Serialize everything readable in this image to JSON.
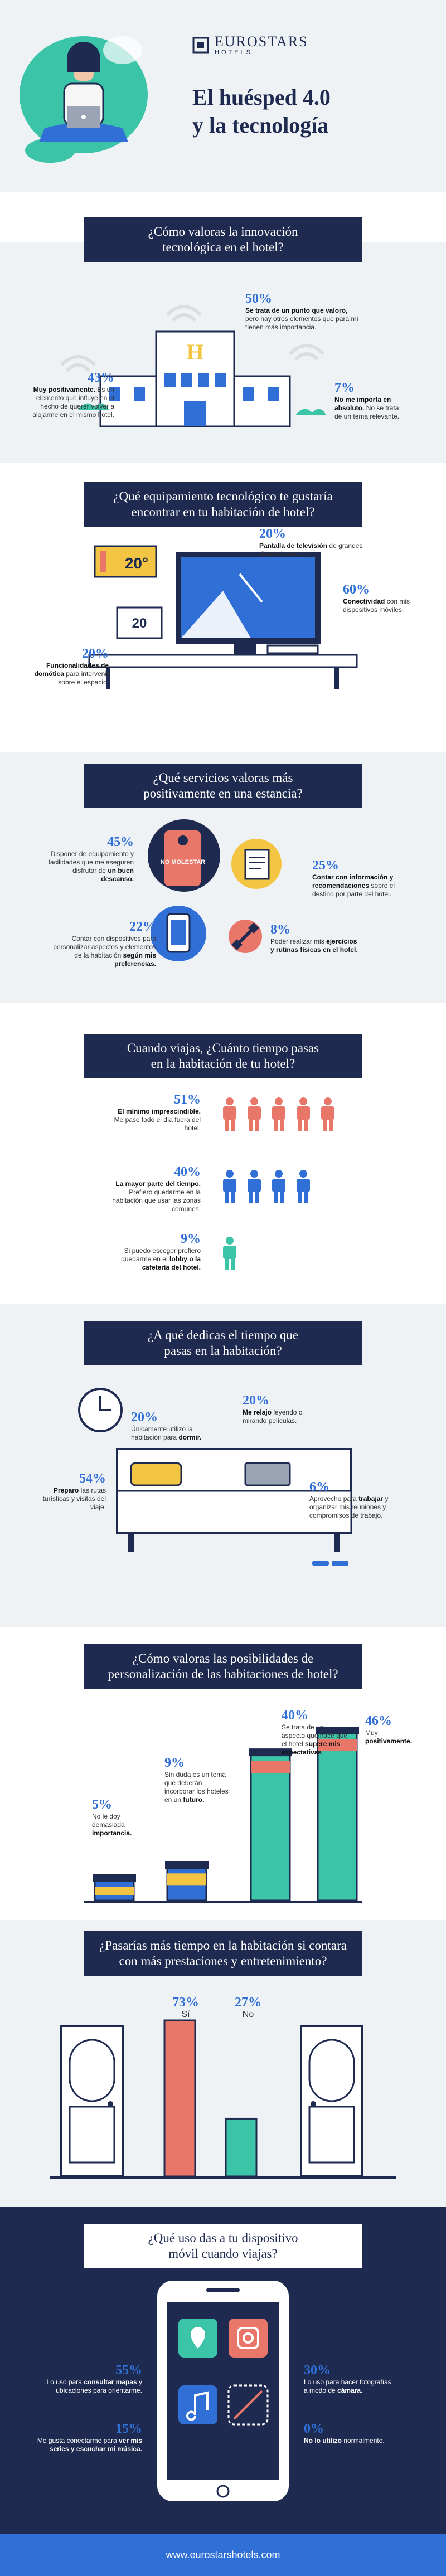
{
  "header": {
    "brand": "EUROSTARS",
    "brand_sub": "HOTELS",
    "title_line1": "El huésped 4.0",
    "title_line2": "y la tecnología"
  },
  "s1": {
    "q1": "¿Cómo valoras la innovación",
    "q2": "tecnológica en el hotel?",
    "hotel_letter": "H",
    "items": [
      {
        "pct": "50%",
        "strong": "Se trata de un punto que valoro,",
        "text": "pero hay otros elementos que para mí tienen más importancia."
      },
      {
        "pct": "43%",
        "strong": "Muy positivamente.",
        "text": "Es un elemento que influye en el hecho de querer volver a alojarme en el mismo hotel."
      },
      {
        "pct": "7%",
        "strong": "No me importa en absoluto.",
        "text": "No se trata de un tema relevante."
      }
    ]
  },
  "s2": {
    "q1": "¿Qué equipamiento tecnológico te gustaría",
    "q2": "encontrar en tu habitación de hotel?",
    "thermo1": "20°",
    "thermo2": "20",
    "items": [
      {
        "pct": "20%",
        "strong": "Pantalla de televisión",
        "text": "de grandes dimensiones."
      },
      {
        "pct": "60%",
        "strong": "Conectividad",
        "text": "con mis dispositivos móviles."
      },
      {
        "pct": "20%",
        "strong": "Funcionalidades de domótica",
        "text": "para intervenir sobre el espacio."
      }
    ]
  },
  "s3": {
    "q1": "¿Qué servicios valoras más",
    "q2": "positivamente en una estancia?",
    "sign": "NO MOLESTAR",
    "items": [
      {
        "pct": "45%",
        "text": "Disponer de equipamiento y facilidades que me aseguren disfrutar de",
        "strong": "un buen descanso."
      },
      {
        "pct": "25%",
        "strong": "Contar con información y recomendaciones",
        "text": "sobre el destino por parte del hotel."
      },
      {
        "pct": "22%",
        "text": "Contar con dispositivos para personalizar aspectos y elementos de la habitación",
        "strong": "según mis preferencias."
      },
      {
        "pct": "8%",
        "text": "Poder realizar mis",
        "strong": "ejercicios y rutinas físicas en el hotel."
      }
    ]
  },
  "s4": {
    "q1": "Cuando viajas, ¿Cuánto tiempo pasas",
    "q2": "en la habitación de tu hotel?",
    "items": [
      {
        "pct": "51%",
        "strong": "El mínimo imprescindible.",
        "text": "Me paso todo el día fuera del hotel.",
        "color": "#e8776a",
        "count": 5
      },
      {
        "pct": "40%",
        "strong": "La mayor parte del tiempo.",
        "text": "Prefiero quedarme en la habitación que usar las zonas comunes.",
        "color": "#2f6fd6",
        "count": 4
      },
      {
        "pct": "9%",
        "text": "Si puedo escoger prefiero quedarme en el",
        "strong": "lobby o la cafetería del hotel.",
        "color": "#3cc4a8",
        "count": 1
      }
    ]
  },
  "s5": {
    "q1": "¿A qué dedicas el tiempo que",
    "q2": "pasas en la habitación?",
    "items": [
      {
        "pct": "20%",
        "text": "Únicamente utilizo la habitación para",
        "strong": "dormir."
      },
      {
        "pct": "20%",
        "strong": "Me relajo",
        "text": "leyendo o mirando películas."
      },
      {
        "pct": "54%",
        "strong": "Preparo",
        "text": "las rutas turísticas y visitas del viaje."
      },
      {
        "pct": "6%",
        "text": "Aprovecho para",
        "strong": "trabajar",
        "text2": "y organizar mis reuniones y compromisos de trabajo."
      }
    ]
  },
  "s6": {
    "q1": "¿Cómo valoras las posibilidades de",
    "q2": "personalización de las habitaciones de hotel?",
    "items": [
      {
        "pct": "40%",
        "text": "Se trata de un aspecto que hace que el hotel",
        "strong": "supere mis expectativas"
      },
      {
        "pct": "46%",
        "text": "Muy",
        "strong": "positivamente."
      },
      {
        "pct": "9%",
        "text": "Sin duda es un tema que deberán incorporar los hoteles en un",
        "strong": "futuro."
      },
      {
        "pct": "5%",
        "text": "No le doy demasiada",
        "strong": "importancia."
      }
    ]
  },
  "s7": {
    "q1": "¿Pasarías más tiempo en la habitación si contara",
    "q2": "con más prestaciones y entretenimiento?",
    "yes_pct": "73%",
    "yes_label": "Sí",
    "no_pct": "27%",
    "no_label": "No"
  },
  "s8": {
    "q1": "¿Qué uso das a tu dispositivo",
    "q2": "móvil cuando viajas?",
    "items": [
      {
        "pct": "55%",
        "text": "Lo uso para",
        "strong": "consultar mapas",
        "text2": "y ubicaciones para orientarme."
      },
      {
        "pct": "30%",
        "text": "Lo uso para hacer fotografías a modo de",
        "strong": "cámara."
      },
      {
        "pct": "15%",
        "text": "Me gusta conectarme para",
        "strong": "ver mis series y escuchar mi música."
      },
      {
        "pct": "0%",
        "strong": "No lo utilizo",
        "text": "normalmente."
      }
    ]
  },
  "footer": {
    "url": "www.eurostarshotels.com"
  },
  "colors": {
    "navy": "#1e2a4f",
    "blue": "#2f6fd6",
    "teal": "#3cc4a8",
    "coral": "#e8776a",
    "yellow": "#f4c542",
    "light": "#eef2f5"
  }
}
